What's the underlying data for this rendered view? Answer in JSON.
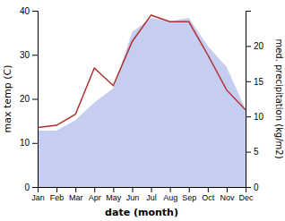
{
  "chart_data": {
    "type": "line",
    "categories": [
      "Jan",
      "Feb",
      "Mar",
      "Apr",
      "May",
      "Jun",
      "Jul",
      "Aug",
      "Sep",
      "Oct",
      "Nov",
      "Dec"
    ],
    "xlabel": "date (month)",
    "ylabel": "max temp (C)",
    "y2label": "med. precipitation (kg/m2)",
    "ylim": [
      0,
      40
    ],
    "yticks": [
      0,
      10,
      20,
      30,
      40
    ],
    "y2lim": [
      0,
      25
    ],
    "y2ticks": [
      0,
      5,
      10,
      15,
      20
    ],
    "series": [
      {
        "type": "area",
        "axis": "y2",
        "color": "#c5cef0",
        "values": [
          8.0,
          8.0,
          9.5,
          12.0,
          14.0,
          22.0,
          24.0,
          23.5,
          24.0,
          20.0,
          17.0,
          11.0
        ]
      },
      {
        "type": "line",
        "color": "#b03030",
        "values": [
          13.5,
          14.0,
          16.5,
          27.0,
          23.0,
          33.0,
          39.0,
          37.5,
          37.5,
          30.0,
          22.0,
          17.5
        ]
      }
    ]
  }
}
